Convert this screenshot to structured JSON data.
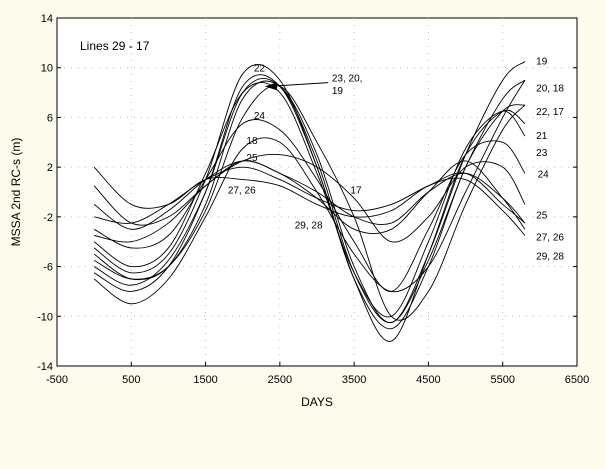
{
  "chart_data": {
    "type": "line",
    "title": "Lines 29 - 17",
    "xlabel": "DAYS",
    "ylabel": "MSSA 2nd RC-s (m)",
    "xlim": [
      -500,
      6500
    ],
    "ylim": [
      -14,
      14
    ],
    "xticks": [
      -500,
      500,
      1500,
      2500,
      3500,
      4500,
      5500,
      6500
    ],
    "yticks": [
      -14,
      -10,
      -6,
      -2,
      2,
      6,
      10,
      14
    ],
    "grid": true,
    "line_color": "#000000",
    "x": [
      0,
      500,
      1000,
      1500,
      2000,
      2500,
      3000,
      3500,
      4000,
      4500,
      5000,
      5500,
      5800
    ],
    "series": [
      {
        "name": "17",
        "values": [
          -5.5,
          -7,
          -6,
          -1.5,
          6,
          8.5,
          4,
          -2,
          -10,
          -8,
          -1,
          5,
          7
        ]
      },
      {
        "name": "18",
        "values": [
          -7,
          -9,
          -7,
          -2,
          3.5,
          4,
          0,
          -5,
          -8,
          -6,
          0,
          6,
          9
        ]
      },
      {
        "name": "19",
        "values": [
          -5,
          -7,
          -6,
          -1,
          7.5,
          8.5,
          3,
          -6,
          -10.5,
          -5,
          3,
          9,
          10.5
        ]
      },
      {
        "name": "20",
        "values": [
          -6,
          -7.5,
          -5.5,
          0,
          8,
          8.5,
          2.5,
          -6.5,
          -10.5,
          -5.5,
          2,
          7.5,
          9
        ]
      },
      {
        "name": "21",
        "values": [
          -6.5,
          -8,
          -6,
          0,
          8.5,
          8.5,
          2,
          -7,
          -12,
          -5,
          3,
          6.5,
          5.5
        ]
      },
      {
        "name": "22",
        "values": [
          -4.5,
          -6.5,
          -5,
          1,
          9.5,
          9,
          2,
          -7,
          -11,
          -6,
          2,
          6.5,
          7
        ]
      },
      {
        "name": "23",
        "values": [
          -4,
          -6,
          -4.5,
          1.5,
          8,
          8,
          1.5,
          -6.5,
          -10,
          -4,
          3.5,
          6.5,
          4.5
        ]
      },
      {
        "name": "24",
        "values": [
          -3,
          -4.5,
          -3.5,
          1,
          5.5,
          5,
          1,
          -4,
          -8,
          -3,
          3,
          4,
          1.5
        ]
      },
      {
        "name": "25",
        "values": [
          -3.5,
          -4,
          -2.5,
          0.5,
          2.5,
          3,
          2,
          -0.5,
          -4,
          -2,
          2,
          2,
          -1
        ]
      },
      {
        "name": "26",
        "values": [
          0.5,
          -2.5,
          -2,
          0.5,
          2.5,
          1.5,
          0,
          -2,
          -2.5,
          0,
          1.5,
          -0.5,
          -2.5
        ]
      },
      {
        "name": "27",
        "values": [
          -2,
          -2.5,
          -1,
          1,
          2,
          1,
          -0.5,
          -1.5,
          -1,
          0.5,
          1.5,
          -1,
          -2.5
        ]
      },
      {
        "name": "28",
        "values": [
          -1,
          -3,
          -1.5,
          1,
          2.5,
          1.5,
          -0.5,
          -3,
          -3,
          0,
          2.5,
          -0.5,
          -3
        ]
      },
      {
        "name": "29",
        "values": [
          2,
          -1,
          -1,
          1,
          1,
          0.5,
          -1,
          -2,
          -1.5,
          0.5,
          1,
          -1.5,
          -3.5
        ]
      }
    ],
    "annotations": [
      {
        "text": "22",
        "x": 2150,
        "y": 10
      },
      {
        "text": "23, 20,",
        "x": 3200,
        "y": 9.2
      },
      {
        "text": "19",
        "x": 3200,
        "y": 8.2
      },
      {
        "text": "24",
        "x": 2150,
        "y": 6.2
      },
      {
        "text": "18",
        "x": 2050,
        "y": 4.2
      },
      {
        "text": "25",
        "x": 2050,
        "y": 2.8
      },
      {
        "text": "27, 26",
        "x": 1800,
        "y": 0.2
      },
      {
        "text": "29, 28",
        "x": 2700,
        "y": -2.6
      },
      {
        "text": "17",
        "x": 3450,
        "y": 0.2
      },
      {
        "text": "19",
        "x": 5950,
        "y": 10.6
      },
      {
        "text": "20, 18",
        "x": 5950,
        "y": 8.4
      },
      {
        "text": "22, 17",
        "x": 5950,
        "y": 6.5
      },
      {
        "text": "21",
        "x": 5950,
        "y": 4.6
      },
      {
        "text": "23",
        "x": 5950,
        "y": 3.2
      },
      {
        "text": "24",
        "x": 5970,
        "y": 1.5
      },
      {
        "text": "25",
        "x": 5950,
        "y": -1.8
      },
      {
        "text": "27, 26",
        "x": 5950,
        "y": -3.6
      },
      {
        "text": "29, 28",
        "x": 5950,
        "y": -5.1
      }
    ]
  }
}
